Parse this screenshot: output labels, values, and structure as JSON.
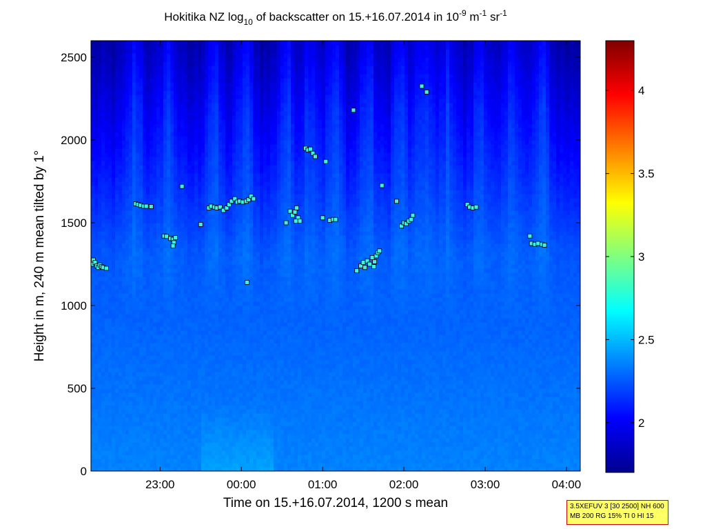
{
  "chart_data": {
    "type": "heatmap",
    "title": {
      "pre": "Hokitika NZ log",
      "sub": "10",
      "mid": " of backscatter on 15.+16.07.2014 in 10",
      "sup1": "-9",
      "m": " m",
      "sup2": "-1",
      "sr": " sr",
      "sup3": "-1"
    },
    "xlabel": "Time on 15.+16.07.2014, 1200 s mean",
    "ylabel": "Height in m, 240 m mean tilted by 1°",
    "xlim_hours": [
      -1.85,
      4.17
    ],
    "ylim": [
      0,
      2600
    ],
    "x_ticks": [
      {
        "label": "23:00",
        "hours": -1
      },
      {
        "label": "00:00",
        "hours": 0
      },
      {
        "label": "01:00",
        "hours": 1
      },
      {
        "label": "02:00",
        "hours": 2
      },
      {
        "label": "03:00",
        "hours": 3
      },
      {
        "label": "04:00",
        "hours": 4
      }
    ],
    "y_ticks": [
      {
        "label": "0",
        "value": 0
      },
      {
        "label": "500",
        "value": 500
      },
      {
        "label": "1000",
        "value": 1000
      },
      {
        "label": "1500",
        "value": 1500
      },
      {
        "label": "2000",
        "value": 2000
      },
      {
        "label": "2500",
        "value": 2500
      }
    ],
    "colorbar": {
      "colormap": "jet",
      "clim": [
        1.7,
        4.3
      ],
      "ticks": [
        {
          "label": "2",
          "value": 2
        },
        {
          "label": "2.5",
          "value": 2.5
        },
        {
          "label": "3",
          "value": 3
        },
        {
          "label": "3.5",
          "value": 3.5
        },
        {
          "label": "4",
          "value": 4
        }
      ]
    },
    "field_description": "Backscatter approx 2.25-2.4 near ground, decreasing with height to approx 1.8 above 2300 m; vertical plume-like structures with higher values.",
    "cloud_base_markers": [
      {
        "t": -1.84,
        "h": 1250
      },
      {
        "t": -1.82,
        "h": 1275
      },
      {
        "t": -1.8,
        "h": 1260
      },
      {
        "t": -1.78,
        "h": 1240
      },
      {
        "t": -1.76,
        "h": 1230
      },
      {
        "t": -1.74,
        "h": 1245
      },
      {
        "t": -1.72,
        "h": 1235
      },
      {
        "t": -1.7,
        "h": 1230
      },
      {
        "t": -1.66,
        "h": 1225
      },
      {
        "t": -1.3,
        "h": 1615
      },
      {
        "t": -1.27,
        "h": 1610
      },
      {
        "t": -1.24,
        "h": 1605
      },
      {
        "t": -1.2,
        "h": 1600
      },
      {
        "t": -1.17,
        "h": 1600
      },
      {
        "t": -1.11,
        "h": 1598
      },
      {
        "t": -0.95,
        "h": 1420
      },
      {
        "t": -0.92,
        "h": 1418
      },
      {
        "t": -0.87,
        "h": 1405
      },
      {
        "t": -0.84,
        "h": 1400
      },
      {
        "t": -0.81,
        "h": 1410
      },
      {
        "t": -0.83,
        "h": 1380
      },
      {
        "t": -0.84,
        "h": 1360
      },
      {
        "t": -0.73,
        "h": 1720
      },
      {
        "t": -0.5,
        "h": 1490
      },
      {
        "t": -0.4,
        "h": 1590
      },
      {
        "t": -0.37,
        "h": 1600
      },
      {
        "t": -0.33,
        "h": 1595
      },
      {
        "t": -0.3,
        "h": 1590
      },
      {
        "t": -0.26,
        "h": 1595
      },
      {
        "t": -0.22,
        "h": 1575
      },
      {
        "t": -0.18,
        "h": 1590
      },
      {
        "t": -0.15,
        "h": 1610
      },
      {
        "t": -0.12,
        "h": 1630
      },
      {
        "t": -0.08,
        "h": 1645
      },
      {
        "t": -0.05,
        "h": 1625
      },
      {
        "t": -0.02,
        "h": 1630
      },
      {
        "t": 0.02,
        "h": 1625
      },
      {
        "t": 0.06,
        "h": 1630
      },
      {
        "t": 0.09,
        "h": 1640
      },
      {
        "t": 0.12,
        "h": 1660
      },
      {
        "t": 0.15,
        "h": 1645
      },
      {
        "t": 0.07,
        "h": 1140
      },
      {
        "t": 0.55,
        "h": 1500
      },
      {
        "t": 0.6,
        "h": 1570
      },
      {
        "t": 0.63,
        "h": 1545
      },
      {
        "t": 0.66,
        "h": 1565
      },
      {
        "t": 0.68,
        "h": 1590
      },
      {
        "t": 0.7,
        "h": 1530
      },
      {
        "t": 0.72,
        "h": 1510
      },
      {
        "t": 0.67,
        "h": 1510
      },
      {
        "t": 0.79,
        "h": 1950
      },
      {
        "t": 0.82,
        "h": 1940
      },
      {
        "t": 0.85,
        "h": 1945
      },
      {
        "t": 0.88,
        "h": 1920
      },
      {
        "t": 0.91,
        "h": 1900
      },
      {
        "t": 1.04,
        "h": 1870
      },
      {
        "t": 1.0,
        "h": 1530
      },
      {
        "t": 1.09,
        "h": 1515
      },
      {
        "t": 1.13,
        "h": 1520
      },
      {
        "t": 1.16,
        "h": 1520
      },
      {
        "t": 1.38,
        "h": 2180
      },
      {
        "t": 1.42,
        "h": 1210
      },
      {
        "t": 1.47,
        "h": 1240
      },
      {
        "t": 1.5,
        "h": 1260
      },
      {
        "t": 1.52,
        "h": 1230
      },
      {
        "t": 1.55,
        "h": 1270
      },
      {
        "t": 1.58,
        "h": 1250
      },
      {
        "t": 1.61,
        "h": 1290
      },
      {
        "t": 1.64,
        "h": 1265
      },
      {
        "t": 1.66,
        "h": 1300
      },
      {
        "t": 1.68,
        "h": 1320
      },
      {
        "t": 1.7,
        "h": 1330
      },
      {
        "t": 1.63,
        "h": 1235
      },
      {
        "t": 1.73,
        "h": 1725
      },
      {
        "t": 1.91,
        "h": 1630
      },
      {
        "t": 1.97,
        "h": 1480
      },
      {
        "t": 2.0,
        "h": 1500
      },
      {
        "t": 2.03,
        "h": 1495
      },
      {
        "t": 2.06,
        "h": 1510
      },
      {
        "t": 2.09,
        "h": 1520
      },
      {
        "t": 2.11,
        "h": 1545
      },
      {
        "t": 2.22,
        "h": 2325
      },
      {
        "t": 2.28,
        "h": 2290
      },
      {
        "t": 2.78,
        "h": 1610
      },
      {
        "t": 2.81,
        "h": 1595
      },
      {
        "t": 2.85,
        "h": 1590
      },
      {
        "t": 2.89,
        "h": 1595
      },
      {
        "t": 3.55,
        "h": 1420
      },
      {
        "t": 3.57,
        "h": 1375
      },
      {
        "t": 3.61,
        "h": 1370
      },
      {
        "t": 3.65,
        "h": 1375
      },
      {
        "t": 3.7,
        "h": 1370
      },
      {
        "t": 3.73,
        "h": 1365
      }
    ]
  },
  "info_box": {
    "line1": "3.5XEFUV 3 [30 2500] NH 600",
    "line2": "MB 200 RG 15% TI 0 HI 15"
  },
  "colors": {
    "marker_fill": "#40f0e0",
    "marker_edge": "#000000",
    "info_box_bg": "#ffff66",
    "info_box_border": "#d00000"
  }
}
